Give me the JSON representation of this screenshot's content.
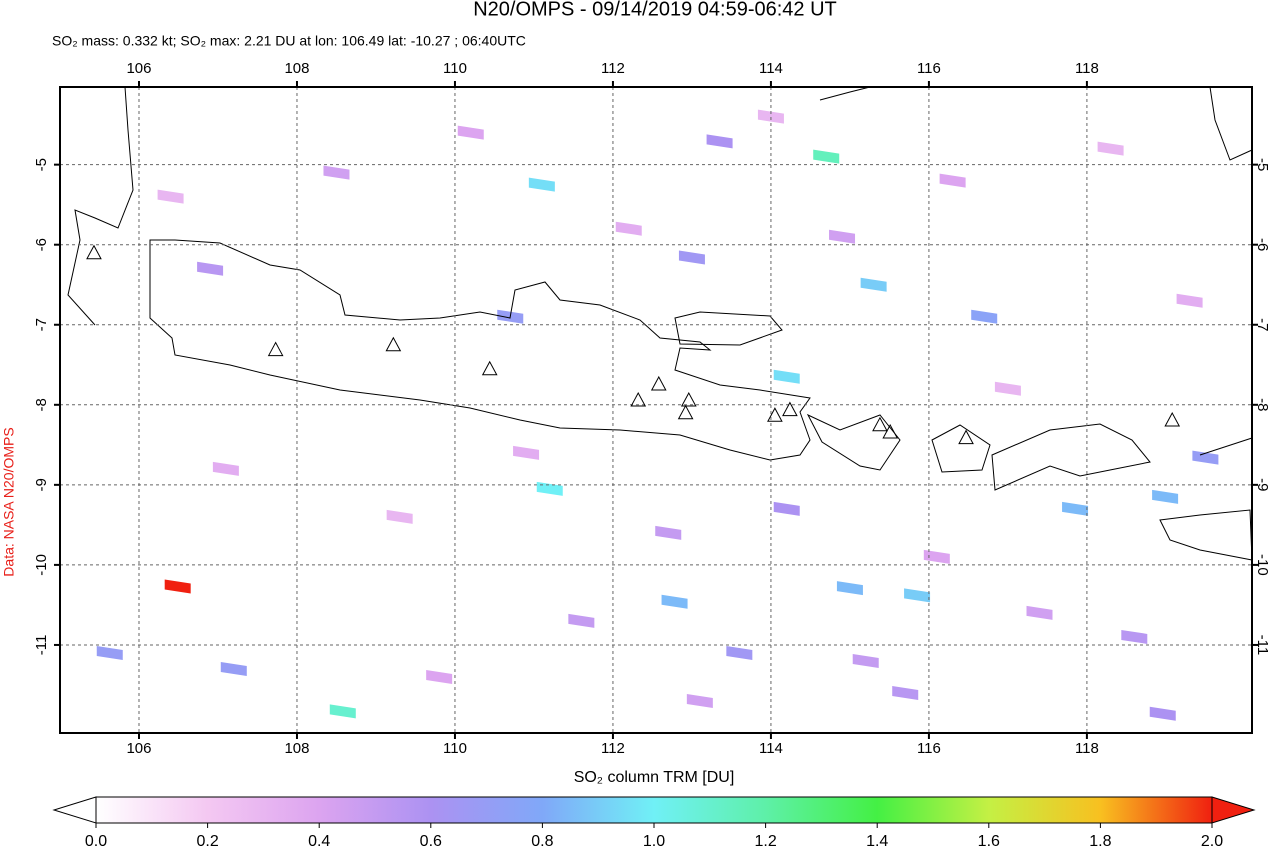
{
  "chart_data": {
    "type": "map",
    "title": "N20/OMPS - 09/14/2019 04:59-06:42 UT",
    "subtitle": "SO₂ mass: 0.332 kt; SO₂ max: 2.21 DU at lon: 106.49 lat: -10.27 ; 06:40UTC",
    "credit": "Data: NASA N20/OMPS",
    "xlim": [
      105.0,
      120.09
    ],
    "ylim": [
      -12.1,
      -4.03
    ],
    "xticks": [
      106,
      108,
      110,
      112,
      114,
      116,
      118
    ],
    "yticks": [
      -5,
      -6,
      -7,
      -8,
      -9,
      -10,
      -11
    ],
    "grid": true,
    "lon": [
      106.49,
      111.1,
      111.2,
      114.7,
      115.3,
      114.2,
      115.85,
      115.0,
      112.78,
      118.99,
      117.85,
      108.58,
      113.0,
      113.35,
      114.2,
      113.6,
      119.5,
      118.96,
      107.2,
      105.63,
      115.7,
      116.7,
      110.7,
      106.4,
      107.1,
      108.5,
      109.3,
      110.2,
      111.6,
      112.2,
      113.1,
      114.0,
      115.2,
      116.3,
      117.4,
      118.3,
      119.3,
      106.9,
      109.8,
      112.7,
      114.9,
      117.0,
      118.6,
      110.9,
      116.1
    ],
    "lat": [
      -10.27,
      -5.25,
      -9.05,
      -4.9,
      -6.5,
      -7.65,
      -10.38,
      -10.29,
      -10.46,
      -9.15,
      -9.3,
      -11.83,
      -6.16,
      -4.71,
      -9.3,
      -11.1,
      -8.66,
      -11.86,
      -11.3,
      -11.1,
      -11.6,
      -6.9,
      -6.9,
      -5.4,
      -8.8,
      -5.1,
      -9.4,
      -4.6,
      -10.7,
      -5.8,
      -11.7,
      -4.4,
      -11.2,
      -5.2,
      -10.6,
      -4.8,
      -6.7,
      -6.3,
      -11.4,
      -9.6,
      -5.9,
      -7.8,
      -10.9,
      -8.6,
      -9.9
    ],
    "values": [
      2.21,
      0.95,
      1.0,
      1.15,
      0.9,
      0.95,
      0.9,
      0.85,
      0.85,
      0.85,
      0.85,
      1.1,
      0.65,
      0.6,
      0.6,
      0.65,
      0.7,
      0.6,
      0.7,
      0.7,
      0.55,
      0.75,
      0.7,
      0.3,
      0.35,
      0.45,
      0.3,
      0.4,
      0.5,
      0.35,
      0.45,
      0.3,
      0.5,
      0.4,
      0.45,
      0.3,
      0.35,
      0.55,
      0.4,
      0.5,
      0.45,
      0.3,
      0.55,
      0.35,
      0.4
    ],
    "volcanoes": {
      "lon": [
        105.43,
        107.73,
        109.22,
        110.44,
        112.32,
        112.58,
        112.96,
        112.92,
        114.05,
        114.24,
        115.38,
        115.51,
        116.47,
        119.08
      ],
      "lat": [
        -6.1,
        -7.31,
        -7.25,
        -7.55,
        -7.94,
        -7.74,
        -7.94,
        -8.1,
        -8.13,
        -8.06,
        -8.25,
        -8.34,
        -8.41,
        -8.19
      ]
    },
    "colorbar": {
      "label": "SO₂ column TRM [DU]",
      "lim": [
        0.0,
        2.0
      ],
      "ticks": [
        {
          "value": 0.0,
          "label": "0.0"
        },
        {
          "value": 0.2,
          "label": "0.2"
        },
        {
          "value": 0.4,
          "label": "0.4"
        },
        {
          "value": 0.6,
          "label": "0.6"
        },
        {
          "value": 0.8,
          "label": "0.8"
        },
        {
          "value": 1.0,
          "label": "1.0"
        },
        {
          "value": 1.2,
          "label": "1.2"
        },
        {
          "value": 1.4,
          "label": "1.4"
        },
        {
          "value": 1.6,
          "label": "1.6"
        },
        {
          "value": 1.8,
          "label": "1.8"
        },
        {
          "value": 2.0,
          "label": "2.0"
        }
      ],
      "colormap": [
        "#ffffff",
        "#f4c8f2",
        "#dca4f0",
        "#ac92f2",
        "#80a8f8",
        "#70f0f6",
        "#5ef0a8",
        "#44f044",
        "#c4f044",
        "#f8c020",
        "#f02010"
      ]
    }
  }
}
